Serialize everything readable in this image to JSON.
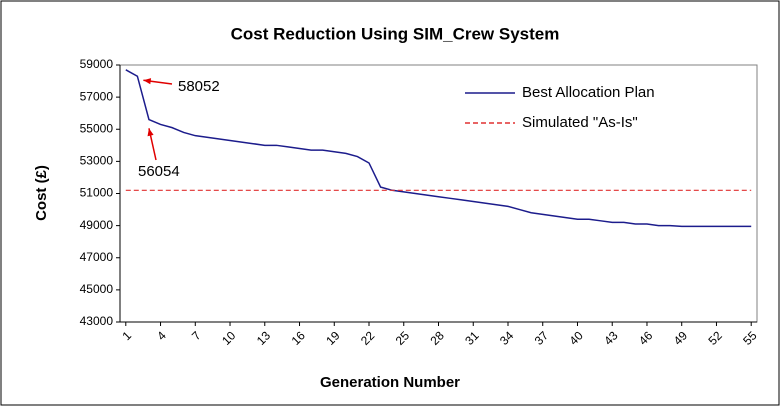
{
  "chart_data": {
    "type": "line",
    "title": "Cost Reduction Using SIM_Crew System",
    "x_label": "Generation Number",
    "y_label": "Cost (£)",
    "x": [
      1,
      2,
      3,
      4,
      5,
      6,
      7,
      8,
      9,
      10,
      11,
      12,
      13,
      14,
      15,
      16,
      17,
      18,
      19,
      20,
      21,
      22,
      23,
      24,
      25,
      26,
      27,
      28,
      29,
      30,
      31,
      32,
      33,
      34,
      35,
      36,
      37,
      38,
      39,
      40,
      41,
      42,
      43,
      44,
      45,
      46,
      47,
      48,
      49,
      50,
      51,
      52,
      53,
      54,
      55
    ],
    "xlim": [
      0.5,
      55.5
    ],
    "xticks": [
      1,
      4,
      7,
      10,
      13,
      16,
      19,
      22,
      25,
      28,
      31,
      34,
      37,
      40,
      43,
      46,
      49,
      52,
      55
    ],
    "ylim": [
      43000,
      59000
    ],
    "yticks": [
      43000,
      45000,
      47000,
      49000,
      51000,
      53000,
      55000,
      57000,
      59000
    ],
    "series": [
      {
        "name": "Best Allocation Plan",
        "color": "#1c1c8c",
        "dash": false,
        "values": [
          58700,
          58300,
          55600,
          55300,
          55100,
          54800,
          54600,
          54500,
          54400,
          54300,
          54200,
          54100,
          54000,
          54000,
          53900,
          53800,
          53700,
          53700,
          53600,
          53500,
          53300,
          52900,
          51400,
          51200,
          51100,
          51000,
          50900,
          50800,
          50700,
          50600,
          50500,
          50400,
          50300,
          50200,
          50000,
          49800,
          49700,
          49600,
          49500,
          49400,
          49400,
          49300,
          49200,
          49200,
          49100,
          49100,
          49000,
          49000,
          48950,
          48950,
          48950,
          48950,
          48950,
          48950,
          48950
        ]
      },
      {
        "name": "Simulated \"As-Is\"",
        "color": "#e03030",
        "dash": true,
        "values": [
          51200,
          51200,
          51200,
          51200,
          51200,
          51200,
          51200,
          51200,
          51200,
          51200,
          51200,
          51200,
          51200,
          51200,
          51200,
          51200,
          51200,
          51200,
          51200,
          51200,
          51200,
          51200,
          51200,
          51200,
          51200,
          51200,
          51200,
          51200,
          51200,
          51200,
          51200,
          51200,
          51200,
          51200,
          51200,
          51200,
          51200,
          51200,
          51200,
          51200,
          51200,
          51200,
          51200,
          51200,
          51200,
          51200,
          51200,
          51200,
          51200,
          51200,
          51200,
          51200,
          51200,
          51200,
          51200
        ]
      }
    ],
    "annotations": [
      {
        "text": "58052",
        "x": 2,
        "value": 58052
      },
      {
        "text": "56054",
        "x": 3,
        "value": 56054
      }
    ],
    "annotation_color": "#e00000",
    "legend": "upper right"
  }
}
